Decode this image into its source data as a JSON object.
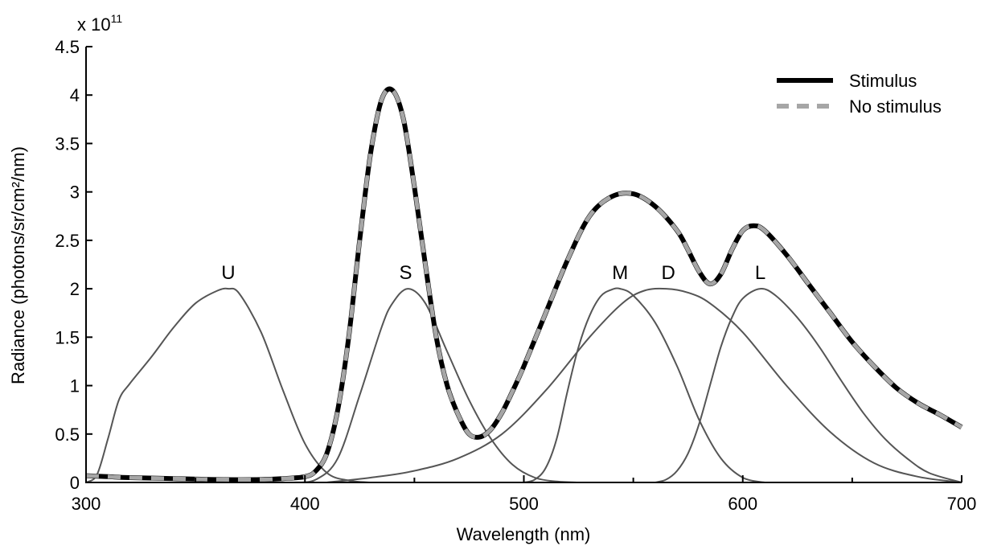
{
  "chart_data": {
    "type": "line",
    "xlabel": "Wavelength (nm)",
    "ylabel": "Radiance (photons/sr/cm²/nm)",
    "y_multiplier": "x 10",
    "y_multiplier_exponent": "11",
    "xlim": [
      300,
      700
    ],
    "ylim": [
      0,
      4.5
    ],
    "x_ticks": [
      300,
      400,
      500,
      600,
      700
    ],
    "x_tick_labels": [
      "300",
      "400",
      "500",
      "600",
      "700"
    ],
    "x_minor_ticks": [
      350,
      450,
      550,
      650
    ],
    "y_ticks": [
      0,
      0.5,
      1,
      1.5,
      2,
      2.5,
      3,
      3.5,
      4,
      4.5
    ],
    "y_tick_labels": [
      "0",
      "0.5",
      "1",
      "1.5",
      "2",
      "2.5",
      "3",
      "3.5",
      "4",
      "4.5"
    ],
    "grid": false,
    "legend": {
      "position": "top-right",
      "entries": [
        {
          "label": "Stimulus",
          "color": "#000000",
          "style": "solid"
        },
        {
          "label": "No stimulus",
          "color": "#a6a6a6",
          "style": "dashed"
        }
      ]
    },
    "series": [
      {
        "name": "Stimulus",
        "color": "#000000",
        "style": "solid",
        "x": [
          300,
          310,
          320,
          340,
          360,
          380,
          390,
          400,
          405,
          410,
          415,
          420,
          425,
          430,
          435,
          440,
          445,
          450,
          455,
          460,
          465,
          470,
          475,
          480,
          485,
          490,
          495,
          500,
          510,
          520,
          530,
          540,
          550,
          560,
          570,
          575,
          580,
          585,
          590,
          595,
          600,
          605,
          610,
          620,
          630,
          640,
          650,
          660,
          670,
          680,
          690,
          700
        ],
        "y": [
          0.07,
          0.06,
          0.05,
          0.04,
          0.03,
          0.03,
          0.04,
          0.06,
          0.12,
          0.3,
          0.75,
          1.5,
          2.5,
          3.4,
          3.95,
          4.05,
          3.75,
          3.05,
          2.25,
          1.5,
          1.0,
          0.7,
          0.5,
          0.47,
          0.55,
          0.72,
          0.95,
          1.2,
          1.75,
          2.3,
          2.75,
          2.95,
          2.98,
          2.85,
          2.6,
          2.4,
          2.18,
          2.05,
          2.15,
          2.4,
          2.6,
          2.65,
          2.6,
          2.35,
          2.05,
          1.75,
          1.45,
          1.2,
          0.98,
          0.82,
          0.7,
          0.57
        ]
      },
      {
        "name": "No stimulus",
        "color": "#a6a6a6",
        "style": "dashed",
        "x": [
          300,
          310,
          320,
          340,
          360,
          380,
          390,
          400,
          405,
          410,
          415,
          420,
          425,
          430,
          435,
          440,
          445,
          450,
          455,
          460,
          465,
          470,
          475,
          480,
          485,
          490,
          495,
          500,
          510,
          520,
          530,
          540,
          550,
          560,
          570,
          575,
          580,
          585,
          590,
          595,
          600,
          605,
          610,
          620,
          630,
          640,
          650,
          660,
          670,
          680,
          690,
          700
        ],
        "y": [
          0.07,
          0.06,
          0.05,
          0.04,
          0.03,
          0.03,
          0.04,
          0.06,
          0.12,
          0.3,
          0.75,
          1.5,
          2.5,
          3.4,
          3.95,
          4.05,
          3.75,
          3.05,
          2.25,
          1.5,
          1.0,
          0.7,
          0.5,
          0.47,
          0.55,
          0.72,
          0.95,
          1.2,
          1.75,
          2.3,
          2.75,
          2.95,
          2.98,
          2.85,
          2.6,
          2.4,
          2.18,
          2.05,
          2.15,
          2.4,
          2.6,
          2.65,
          2.6,
          2.35,
          2.05,
          1.75,
          1.45,
          1.2,
          0.98,
          0.82,
          0.7,
          0.57
        ]
      }
    ],
    "sensitivity_curves": [
      {
        "name": "U",
        "color": "#555555",
        "x": [
          300,
          305,
          310,
          315,
          320,
          330,
          340,
          350,
          360,
          365,
          370,
          380,
          390,
          400,
          410,
          420,
          430
        ],
        "y": [
          0.0,
          0.08,
          0.45,
          0.85,
          1.02,
          1.3,
          1.6,
          1.85,
          1.98,
          2.0,
          1.95,
          1.55,
          0.95,
          0.4,
          0.1,
          0.02,
          0.0
        ]
      },
      {
        "name": "S",
        "color": "#555555",
        "x": [
          395,
          405,
          415,
          425,
          435,
          440,
          447,
          455,
          465,
          475,
          485,
          495,
          505,
          515,
          525
        ],
        "y": [
          0.0,
          0.03,
          0.25,
          0.9,
          1.6,
          1.85,
          2.0,
          1.85,
          1.35,
          0.85,
          0.45,
          0.18,
          0.05,
          0.01,
          0.0
        ]
      },
      {
        "name": "M",
        "color": "#555555",
        "x": [
          500,
          505,
          510,
          515,
          520,
          525,
          530,
          535,
          540,
          544,
          550,
          560,
          570,
          580,
          590,
          600,
          610
        ],
        "y": [
          0.0,
          0.03,
          0.15,
          0.45,
          0.95,
          1.4,
          1.72,
          1.92,
          1.99,
          2.0,
          1.93,
          1.65,
          1.2,
          0.65,
          0.25,
          0.05,
          0.0
        ]
      },
      {
        "name": "D",
        "color": "#555555",
        "x": [
          410,
          430,
          450,
          470,
          490,
          510,
          530,
          545,
          555,
          565,
          575,
          585,
          600,
          620,
          640,
          660,
          680,
          700
        ],
        "y": [
          0.0,
          0.05,
          0.12,
          0.25,
          0.5,
          0.95,
          1.5,
          1.85,
          1.98,
          2.0,
          1.96,
          1.85,
          1.55,
          1.0,
          0.52,
          0.2,
          0.06,
          0.0
        ]
      },
      {
        "name": "L",
        "color": "#555555",
        "x": [
          560,
          565,
          570,
          575,
          580,
          585,
          590,
          595,
          600,
          608,
          615,
          625,
          635,
          645,
          655,
          665,
          675,
          685,
          700
        ],
        "y": [
          0.0,
          0.03,
          0.12,
          0.3,
          0.6,
          1.0,
          1.4,
          1.7,
          1.9,
          2.0,
          1.93,
          1.7,
          1.4,
          1.05,
          0.72,
          0.45,
          0.25,
          0.1,
          0.0
        ]
      }
    ],
    "curve_labels": [
      {
        "text": "U",
        "x": 365,
        "y": 2.1
      },
      {
        "text": "S",
        "x": 446,
        "y": 2.1
      },
      {
        "text": "M",
        "x": 544,
        "y": 2.1
      },
      {
        "text": "D",
        "x": 566,
        "y": 2.1
      },
      {
        "text": "L",
        "x": 608,
        "y": 2.1
      }
    ]
  }
}
